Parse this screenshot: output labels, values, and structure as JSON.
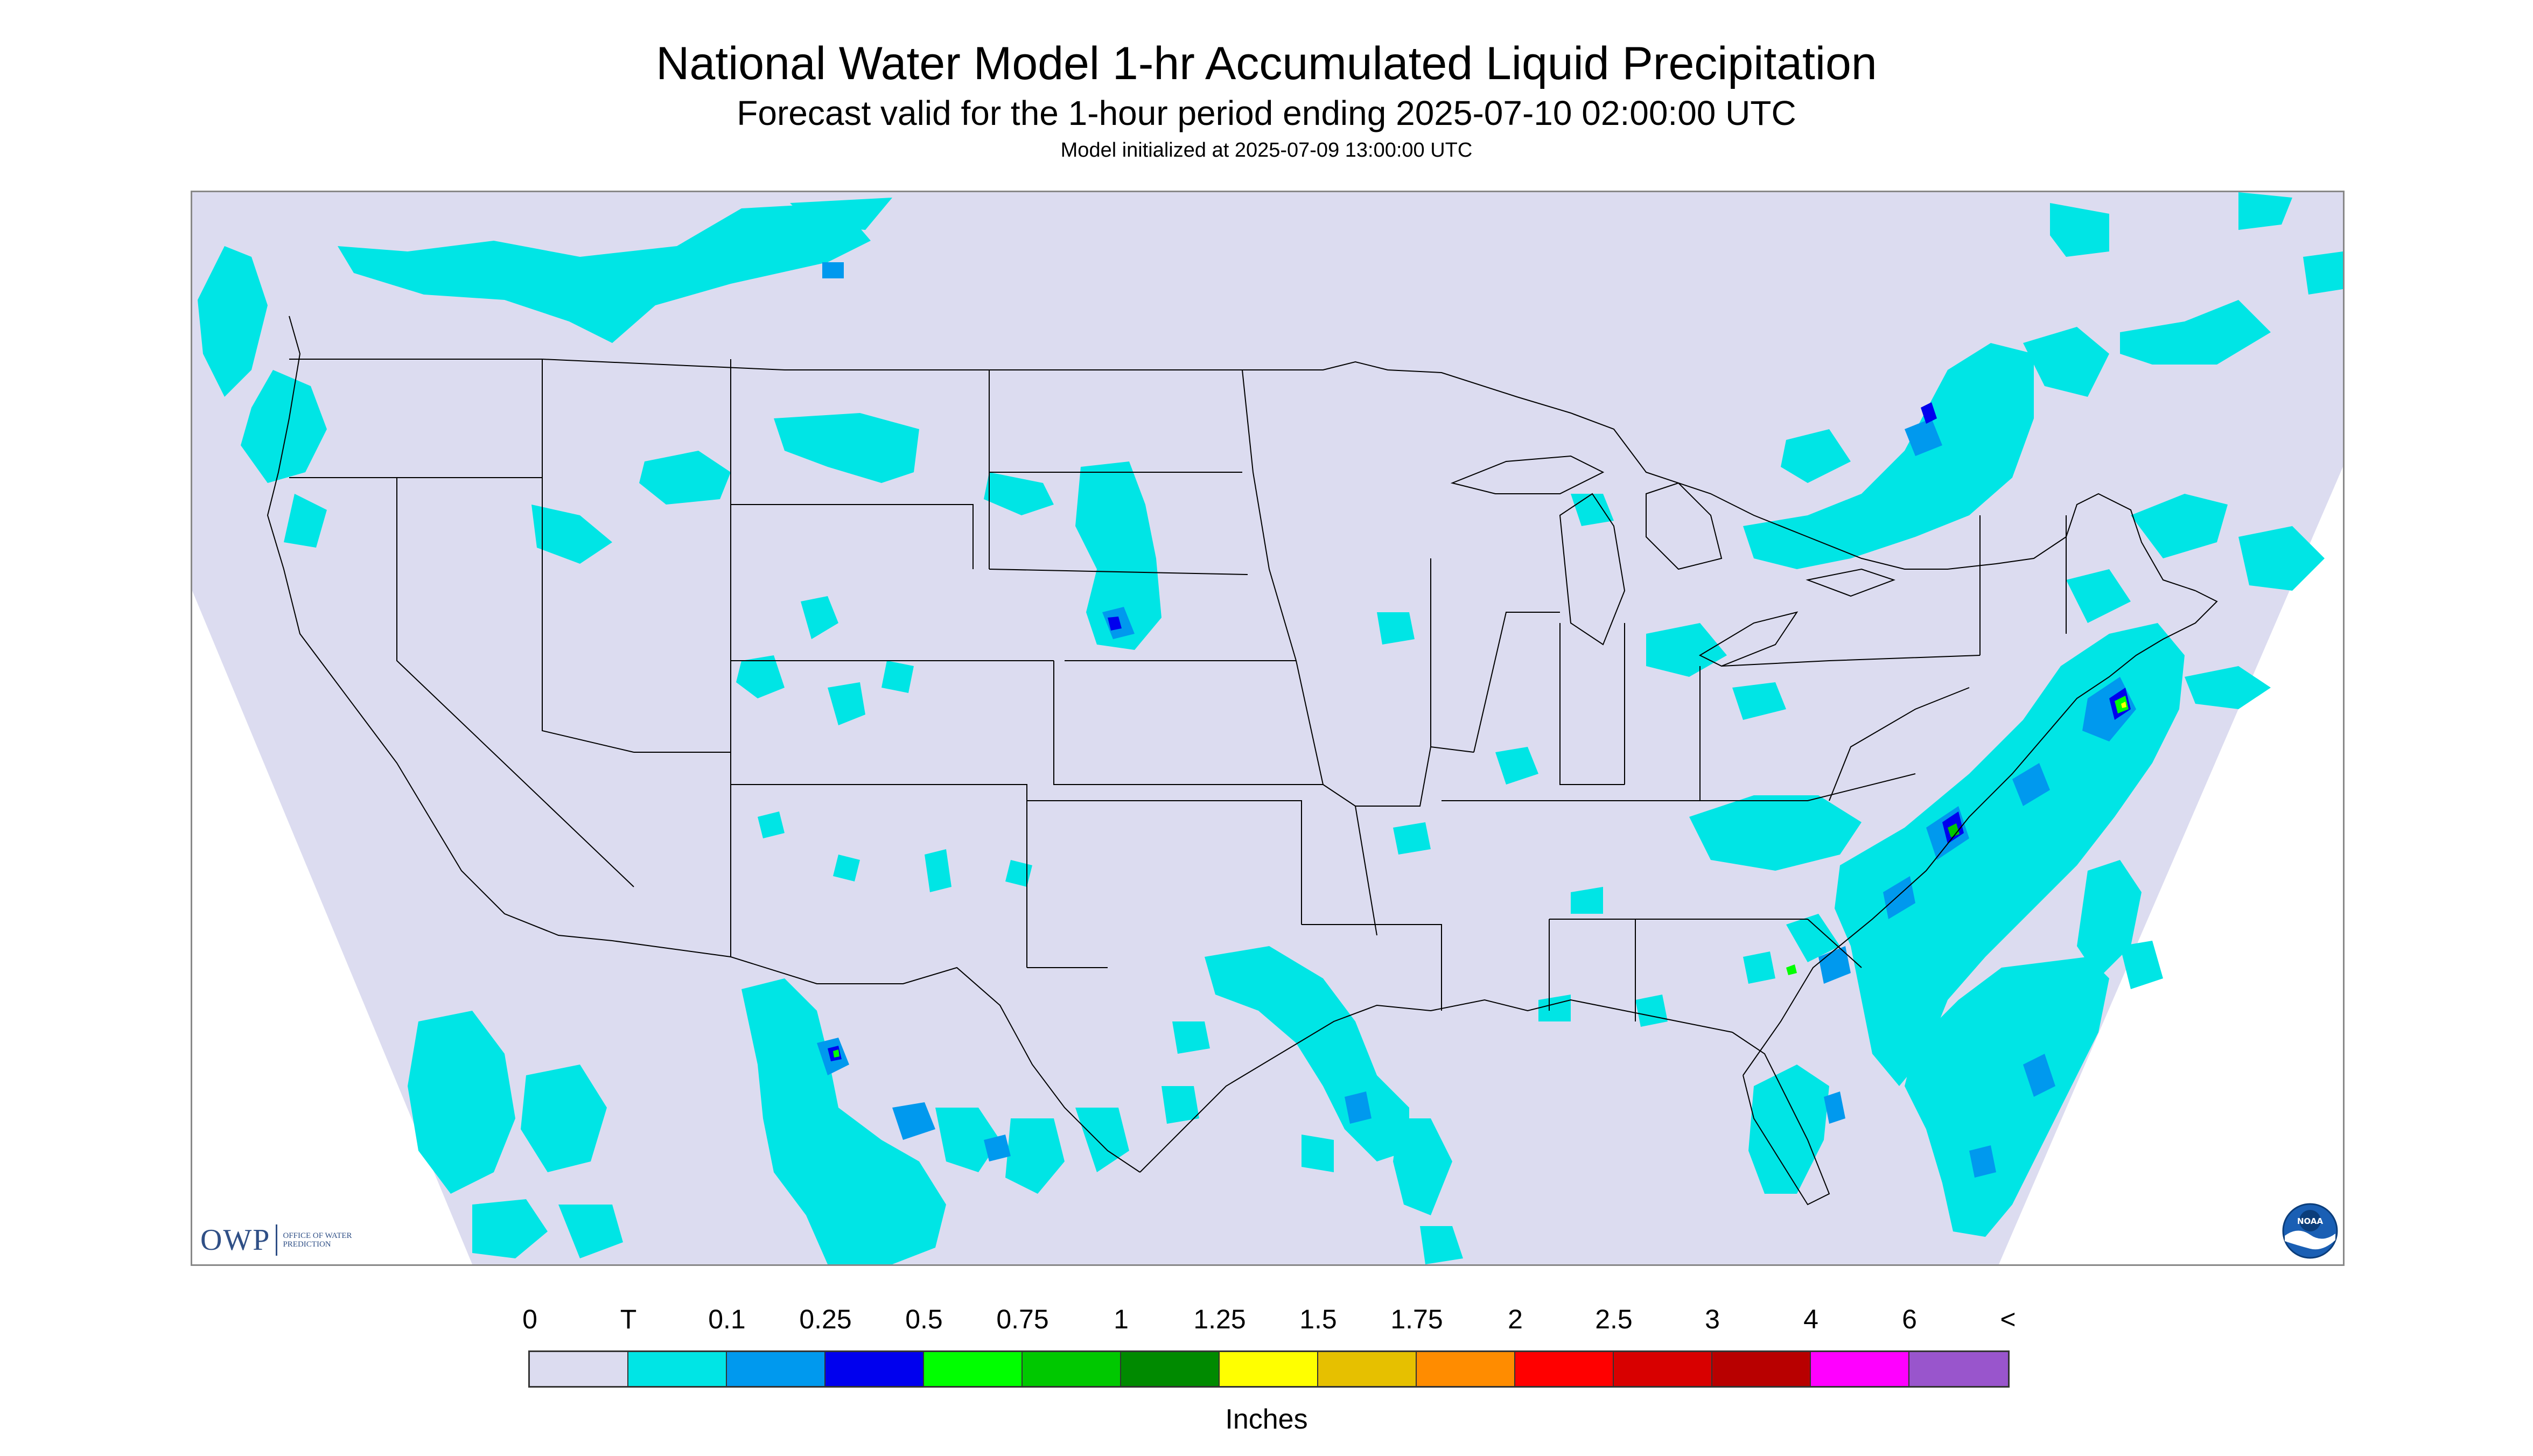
{
  "title": "National Water Model 1-hr Accumulated Liquid Precipitation",
  "subtitle": "Forecast valid for the 1-hour period ending 2025-07-10 02:00:00 UTC",
  "init_text": "Model initialized at 2025-07-09 13:00:00 UTC",
  "colors": {
    "background": "#ffffff",
    "land": "#dcdcf0",
    "trace": "#00e5e5",
    "boundary": "#000000"
  },
  "logos": {
    "owp": {
      "text": "OWP",
      "subtext": "OFFICE OF WATER PREDICTION"
    },
    "noaa": {
      "text": "NOAA"
    }
  },
  "legend": {
    "labels": [
      "0",
      "T",
      "0.1",
      "0.25",
      "0.5",
      "0.75",
      "1",
      "1.25",
      "1.5",
      "1.75",
      "2",
      "2.5",
      "3",
      "4",
      "6",
      "<"
    ],
    "colors": [
      "#dcdcf0",
      "#00e5e5",
      "#0099ee",
      "#0000ee",
      "#00ff00",
      "#00c800",
      "#008a00",
      "#ffff00",
      "#e6c000",
      "#ff8c00",
      "#ff0000",
      "#d80000",
      "#b80000",
      "#ff00ff",
      "#9955cc"
    ],
    "units": "Inches"
  },
  "precip_regions": [
    {
      "region": "Northern Rockies / Montana",
      "max_category": "T"
    },
    {
      "region": "Western South Dakota / Nebraska",
      "max_category": "0.25"
    },
    {
      "region": "Mid-Atlantic (Virginia / Maryland)",
      "max_category": "1.5"
    },
    {
      "region": "Carolinas coast",
      "max_category": "1.5"
    },
    {
      "region": "Gulf Coast (Louisiana)",
      "max_category": "0.25"
    },
    {
      "region": "Northern Mexico (Sierra Madre)",
      "max_category": "1.5"
    },
    {
      "region": "Florida peninsula",
      "max_category": "0.25"
    },
    {
      "region": "Western Atlantic",
      "max_category": "0.25"
    },
    {
      "region": "Southern Ontario / Quebec",
      "max_category": "0.25"
    },
    {
      "region": "Pacific Northwest",
      "max_category": "T"
    },
    {
      "region": "Eastern Pacific off Baja",
      "max_category": "T"
    }
  ]
}
